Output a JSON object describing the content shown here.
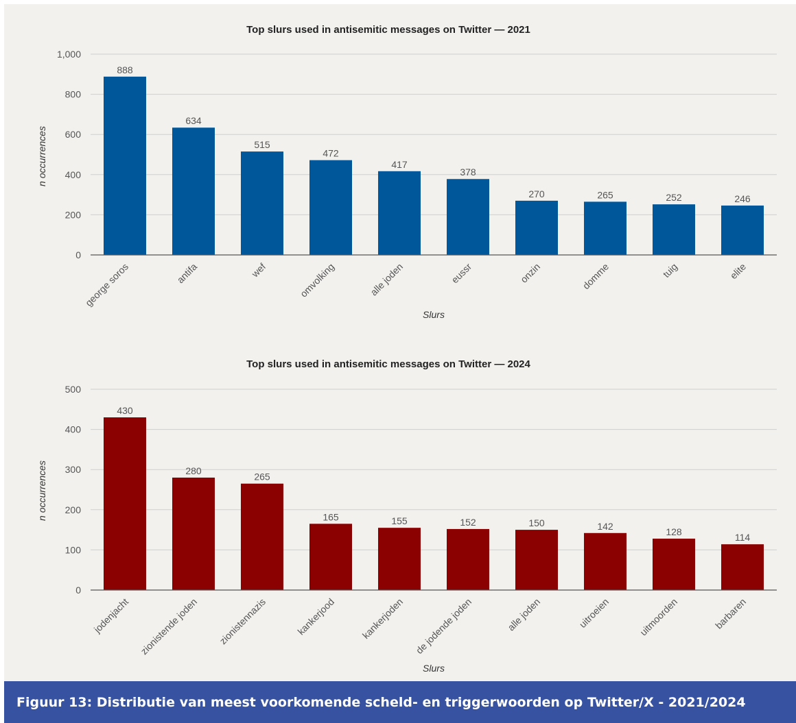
{
  "chart_data": [
    {
      "type": "bar",
      "title": "Top slurs used in antisemitic messages on Twitter — 2021",
      "xlabel": "Slurs",
      "ylabel": "n occurrences",
      "categories": [
        "george soros",
        "antifa",
        "wef",
        "omvolking",
        "alle joden",
        "eussr",
        "onzin",
        "domme",
        "tuig",
        "elite"
      ],
      "values": [
        888,
        634,
        515,
        472,
        417,
        378,
        270,
        265,
        252,
        246
      ],
      "ylim": [
        0,
        1000
      ],
      "yticks": [
        0,
        200,
        400,
        600,
        800,
        1000
      ],
      "ytick_labels": [
        "0",
        "200",
        "400",
        "600",
        "800",
        "1,000"
      ],
      "grid": true,
      "bar_color": "#00579a"
    },
    {
      "type": "bar",
      "title": "Top slurs used in antisemitic messages on Twitter — 2024",
      "xlabel": "Slurs",
      "ylabel": "n occurrences",
      "categories": [
        "jodenjacht",
        "zionistende joden",
        "zionistennazis",
        "kankerjood",
        "kankerjoden",
        "de jodende joden",
        "alle joden",
        "uitroeien",
        "uitmoorden",
        "barbaren"
      ],
      "values": [
        430,
        280,
        265,
        165,
        155,
        152,
        150,
        142,
        128,
        114
      ],
      "ylim": [
        0,
        500
      ],
      "yticks": [
        0,
        100,
        200,
        300,
        400,
        500
      ],
      "ytick_labels": [
        "0",
        "100",
        "200",
        "300",
        "400",
        "500"
      ],
      "grid": true,
      "bar_color": "#8b0000"
    }
  ],
  "caption": {
    "text": "Figuur 13: Distributie van meest voorkomende scheld- en triggerwoorden op Twitter/X - 2021/2024",
    "background": "#3752a0"
  }
}
